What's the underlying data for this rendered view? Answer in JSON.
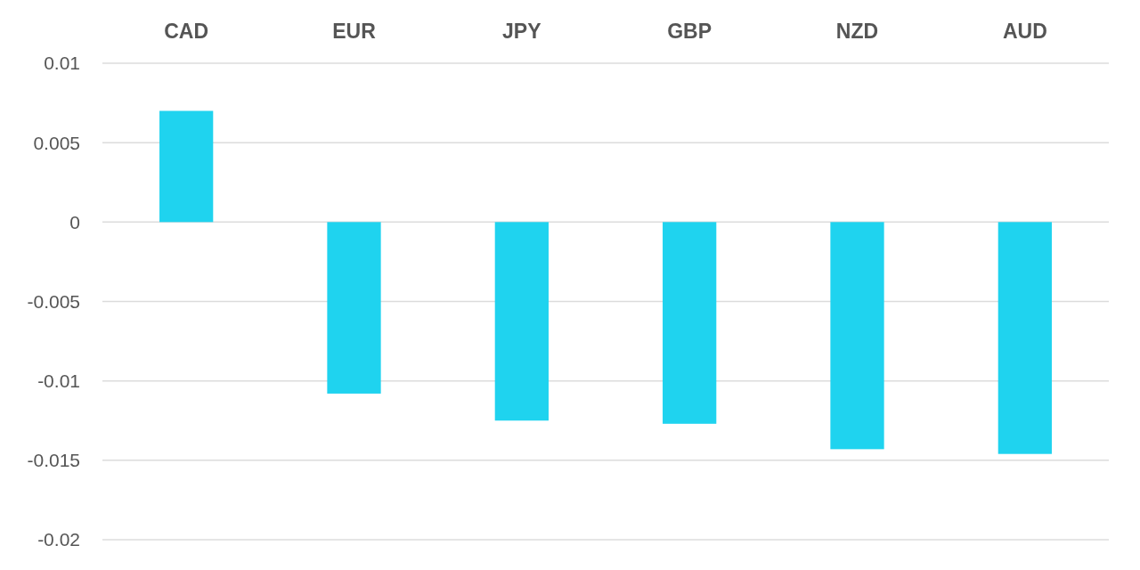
{
  "chart_data": {
    "type": "bar",
    "categories": [
      "CAD",
      "EUR",
      "JPY",
      "GBP",
      "NZD",
      "AUD"
    ],
    "values": [
      0.007,
      -0.0108,
      -0.0125,
      -0.0127,
      -0.0143,
      -0.0146
    ],
    "color": "#1fd3ef",
    "ylim": [
      -0.02,
      0.01
    ],
    "yticks": [
      -0.02,
      -0.015,
      -0.01,
      -0.005,
      0,
      0.005,
      0.01
    ],
    "grid": "y"
  }
}
